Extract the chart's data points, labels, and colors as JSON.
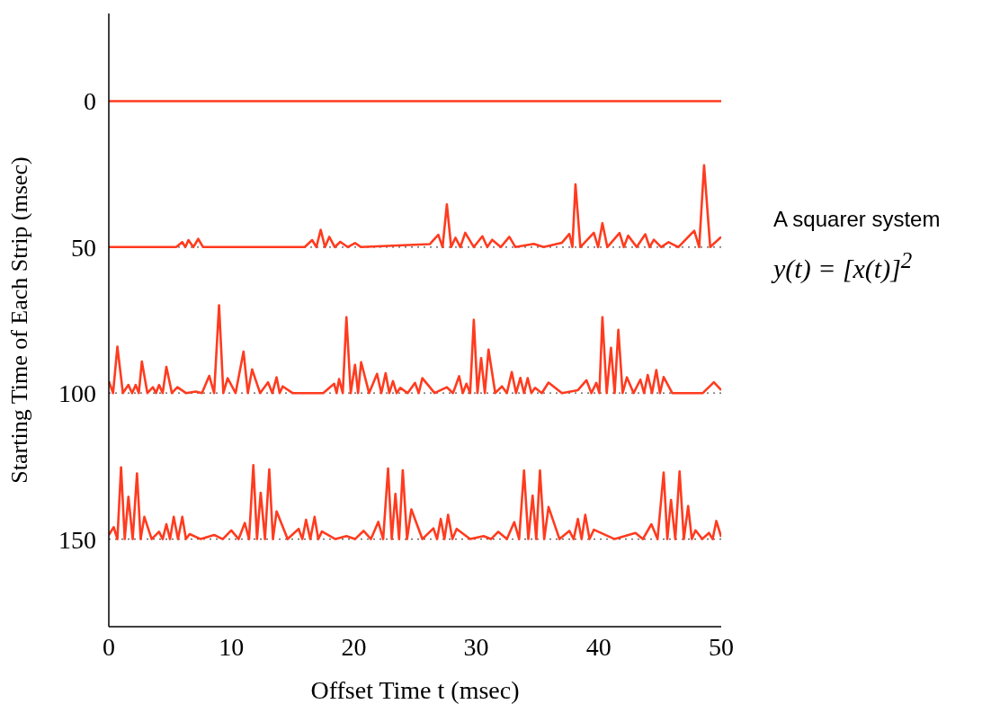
{
  "chart_data": {
    "type": "line",
    "xlabel": "Offset Time t (msec)",
    "ylabel": "Starting Time of Each Strip (msec)",
    "xlim": [
      0,
      50
    ],
    "xticks": [
      0,
      10,
      20,
      30,
      40,
      50
    ],
    "ylim": [
      180,
      -30
    ],
    "yticks": [
      0,
      50,
      100,
      150
    ],
    "grid": false,
    "legend": false,
    "ref_lines": [
      {
        "axis": "y",
        "value": 50,
        "color": "#555555",
        "line_style": "dotted"
      },
      {
        "axis": "y",
        "value": 100,
        "color": "#555555",
        "line_style": "dotted"
      },
      {
        "axis": "y",
        "value": 150,
        "color": "#555555",
        "line_style": "dotted"
      }
    ],
    "annotations": [
      "A squarer system",
      "y(t) = [x(t)]$^{2}$"
    ],
    "series": [
      {
        "color": "#ff3b1f",
        "x": [
          0,
          50
        ],
        "values": [
          0,
          0
        ]
      },
      {
        "color": "#ff3b1f",
        "x": [
          0,
          5.5,
          6.0,
          6.25,
          6.5,
          6.9,
          7.3,
          7.7,
          16.0,
          16.6,
          16.95,
          17.3,
          17.65,
          18.0,
          18.45,
          18.9,
          19.5,
          20.1,
          20.6,
          26.2,
          26.9,
          27.25,
          27.6,
          27.95,
          28.3,
          28.7,
          29.1,
          29.8,
          30.5,
          30.9,
          31.3,
          32.0,
          32.7,
          33.2,
          34.7,
          35.5,
          37.0,
          37.6,
          37.85,
          38.1,
          38.5,
          39.6,
          39.95,
          40.3,
          40.7,
          41.7,
          42.05,
          42.4,
          43.1,
          43.8,
          44.15,
          44.5,
          45.1,
          45.7,
          46.5,
          47.8,
          48.2,
          48.6,
          49.1,
          50
        ],
        "values": [
          50,
          50,
          48.3,
          50,
          47.6,
          50,
          47.2,
          50,
          50,
          47.6,
          50,
          44.1,
          50,
          46.5,
          50,
          48.2,
          50,
          48.6,
          50,
          49,
          45.8,
          50,
          35.4,
          50,
          46.8,
          50,
          45.1,
          50,
          46.3,
          50,
          47.5,
          50,
          46.5,
          50,
          48.9,
          50,
          48.5,
          45.5,
          50,
          28.5,
          50,
          45.1,
          50,
          41.8,
          50,
          45.2,
          50,
          46.1,
          50,
          45.6,
          50,
          47.5,
          50,
          48.3,
          50,
          44.4,
          50,
          22,
          50,
          46.5
        ]
      },
      {
        "color": "#ff3b1f",
        "x": [
          0,
          0.35,
          0.7,
          1.15,
          1.6,
          1.9,
          2.2,
          2.45,
          2.7,
          3.15,
          3.6,
          3.85,
          4.1,
          4.4,
          4.7,
          5.15,
          5.6,
          6.3,
          7.1,
          7.6,
          8.2,
          8.6,
          9.0,
          9.35,
          9.7,
          10.35,
          11.0,
          11.35,
          11.7,
          12.35,
          13.0,
          13.35,
          13.7,
          13.95,
          14.2,
          15,
          17.5,
          18.4,
          18.6,
          18.8,
          19.1,
          19.4,
          19.75,
          20.1,
          20.35,
          20.6,
          21.25,
          21.9,
          22.25,
          22.6,
          22.9,
          23.2,
          23.5,
          23.8,
          24.4,
          25.0,
          25.3,
          25.6,
          26.6,
          27.6,
          28.1,
          28.6,
          28.9,
          29.2,
          29.5,
          29.8,
          30.1,
          30.4,
          30.7,
          31.0,
          31.55,
          32.1,
          32.5,
          32.9,
          33.25,
          33.6,
          33.9,
          34.2,
          34.5,
          34.8,
          35.35,
          35.9,
          37,
          38.3,
          39.0,
          39.4,
          39.8,
          40.05,
          40.3,
          40.65,
          41.0,
          41.3,
          41.6,
          41.95,
          42.3,
          42.85,
          43.4,
          43.7,
          44.0,
          44.35,
          44.7,
          45.0,
          45.3,
          46,
          48.5,
          49.4,
          50
        ],
        "values": [
          95.9,
          100,
          84.1,
          100,
          97.2,
          100,
          97.2,
          100,
          89.2,
          100,
          98,
          100,
          97.2,
          100,
          91,
          100,
          98,
          100,
          99.5,
          100,
          94.1,
          100,
          69.9,
          100,
          94.9,
          100,
          85.8,
          100,
          91.9,
          100,
          96.3,
          100,
          94.6,
          100,
          97.7,
          100,
          100,
          96.8,
          100,
          95.2,
          100,
          74,
          100,
          90.3,
          100,
          89.4,
          100,
          93.4,
          100,
          93.2,
          100,
          95.9,
          100,
          98.2,
          100,
          96.5,
          100,
          94.9,
          100,
          98,
          100,
          94.2,
          100,
          96.8,
          100,
          74.9,
          100,
          88,
          100,
          85.1,
          100,
          97.7,
          100,
          92.8,
          100,
          94.8,
          100,
          94.9,
          100,
          98.2,
          100,
          96.4,
          100,
          99,
          95.6,
          100,
          96.5,
          100,
          74,
          100,
          84.5,
          100,
          78.3,
          100,
          94.6,
          100,
          95.4,
          100,
          93.8,
          100,
          92.1,
          100,
          94.5,
          100,
          100,
          96.3,
          99
        ]
      },
      {
        "color": "#ff3b1f",
        "x": [
          0,
          0.4,
          0.7,
          1.0,
          1.3,
          1.6,
          1.95,
          2.3,
          2.6,
          2.9,
          3.5,
          4.1,
          4.4,
          4.7,
          5.0,
          5.3,
          5.65,
          6.0,
          6.3,
          6.6,
          7.5,
          8.6,
          9.3,
          10.0,
          10.6,
          11.1,
          11.45,
          11.8,
          12.1,
          12.4,
          12.75,
          13.1,
          13.4,
          13.7,
          14.6,
          15.5,
          15.8,
          16.1,
          16.45,
          16.8,
          17.1,
          17.4,
          18.5,
          19.4,
          20.1,
          20.8,
          21.4,
          22.0,
          22.4,
          22.8,
          23.1,
          23.4,
          23.7,
          24.0,
          24.35,
          24.7,
          25.6,
          26.5,
          26.8,
          27.1,
          27.4,
          27.7,
          28.05,
          28.4,
          29.5,
          30.6,
          31.2,
          31.8,
          32.5,
          33.1,
          33.5,
          33.9,
          34.25,
          34.6,
          34.9,
          35.2,
          35.55,
          35.9,
          36.8,
          37.6,
          37.95,
          38.3,
          38.6,
          38.9,
          39.25,
          39.6,
          41.3,
          43.0,
          43.6,
          44.3,
          44.8,
          45.3,
          45.6,
          45.9,
          46.25,
          46.6,
          46.95,
          47.3,
          47.6,
          47.9,
          48.45,
          49.0,
          49.3,
          49.6,
          50
        ],
        "values": [
          148.6,
          145.9,
          150,
          125.4,
          150,
          135.5,
          150,
          127.5,
          150,
          142.4,
          150,
          147.5,
          150,
          144.9,
          150,
          142.4,
          150,
          142.4,
          150,
          148.3,
          150,
          148.6,
          150,
          147,
          150,
          144.5,
          150,
          124.7,
          150,
          134.1,
          150,
          126.1,
          150,
          140.5,
          150,
          146.5,
          150,
          143.4,
          150,
          142.4,
          150,
          147.4,
          150,
          149,
          150,
          147.2,
          150,
          144.1,
          150,
          125.8,
          150,
          134.5,
          150,
          126.4,
          150,
          139.8,
          150,
          146.3,
          150,
          143.1,
          150,
          141.7,
          150,
          146.5,
          150,
          149,
          150,
          147.5,
          150,
          144.2,
          150,
          126.5,
          150,
          135.1,
          150,
          126.5,
          150,
          139,
          150,
          147.2,
          150,
          143.1,
          150,
          141.7,
          150,
          146.8,
          150,
          147.9,
          150,
          144.9,
          150,
          127.2,
          150,
          136.6,
          150,
          126.8,
          150,
          138.7,
          150,
          147,
          150,
          147.9,
          150,
          143.8,
          149.3
        ]
      }
    ]
  }
}
